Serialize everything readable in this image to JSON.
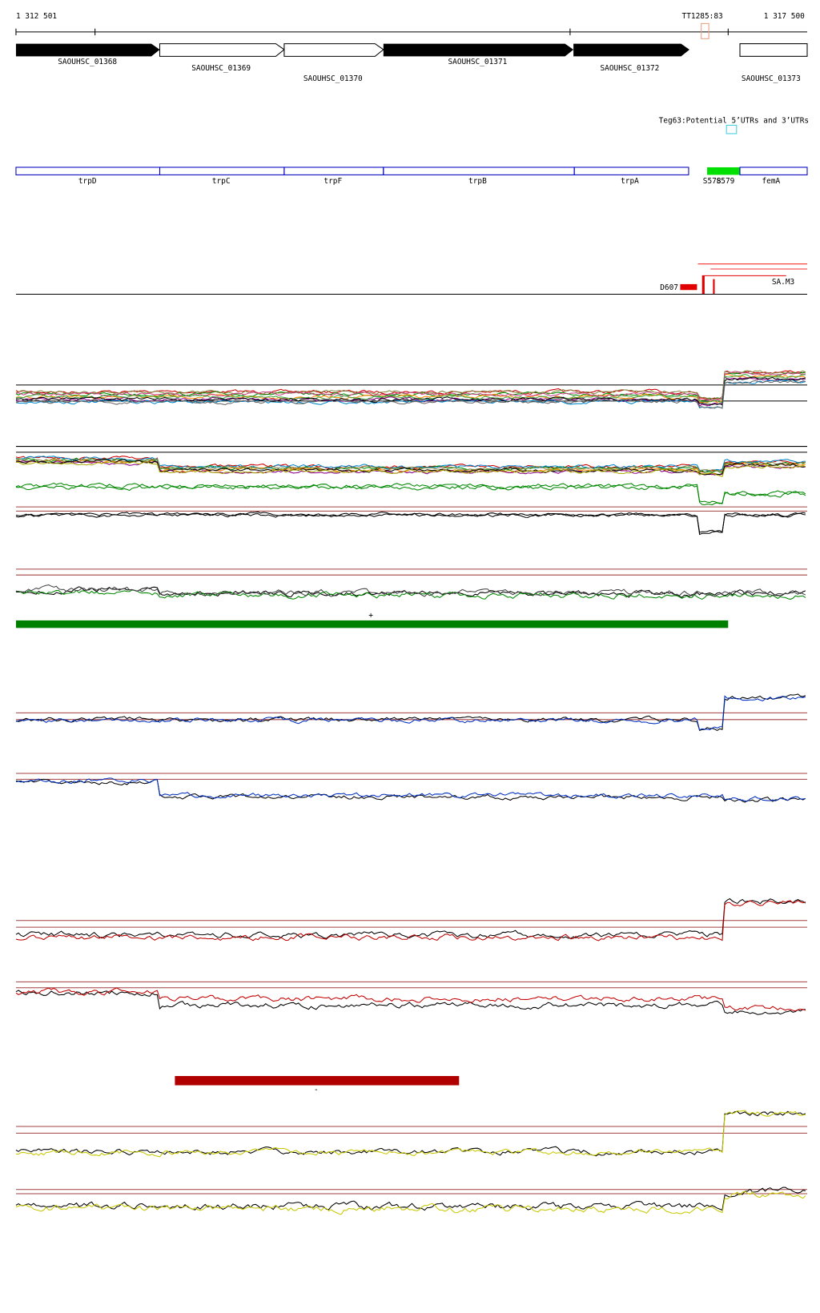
{
  "ruler": {
    "start": "1 312 501",
    "marker": "TT1285:83",
    "end": "1 317 500"
  },
  "genes": [
    "SAOUHSC_01368",
    "SAOUHSC_01369",
    "SAOUHSC_01370",
    "SAOUHSC_01371",
    "SAOUHSC_01372",
    "SAOUHSC_01373"
  ],
  "track_title": "Teg63:Potential 5’UTRs and 3’UTRs",
  "features": [
    "trpD",
    "trpC",
    "trpF",
    "trpB",
    "trpA",
    "S578",
    "S579",
    "femA"
  ],
  "regions": [
    "D607",
    "SA.M3"
  ],
  "strands": [
    "+",
    "-"
  ]
}
